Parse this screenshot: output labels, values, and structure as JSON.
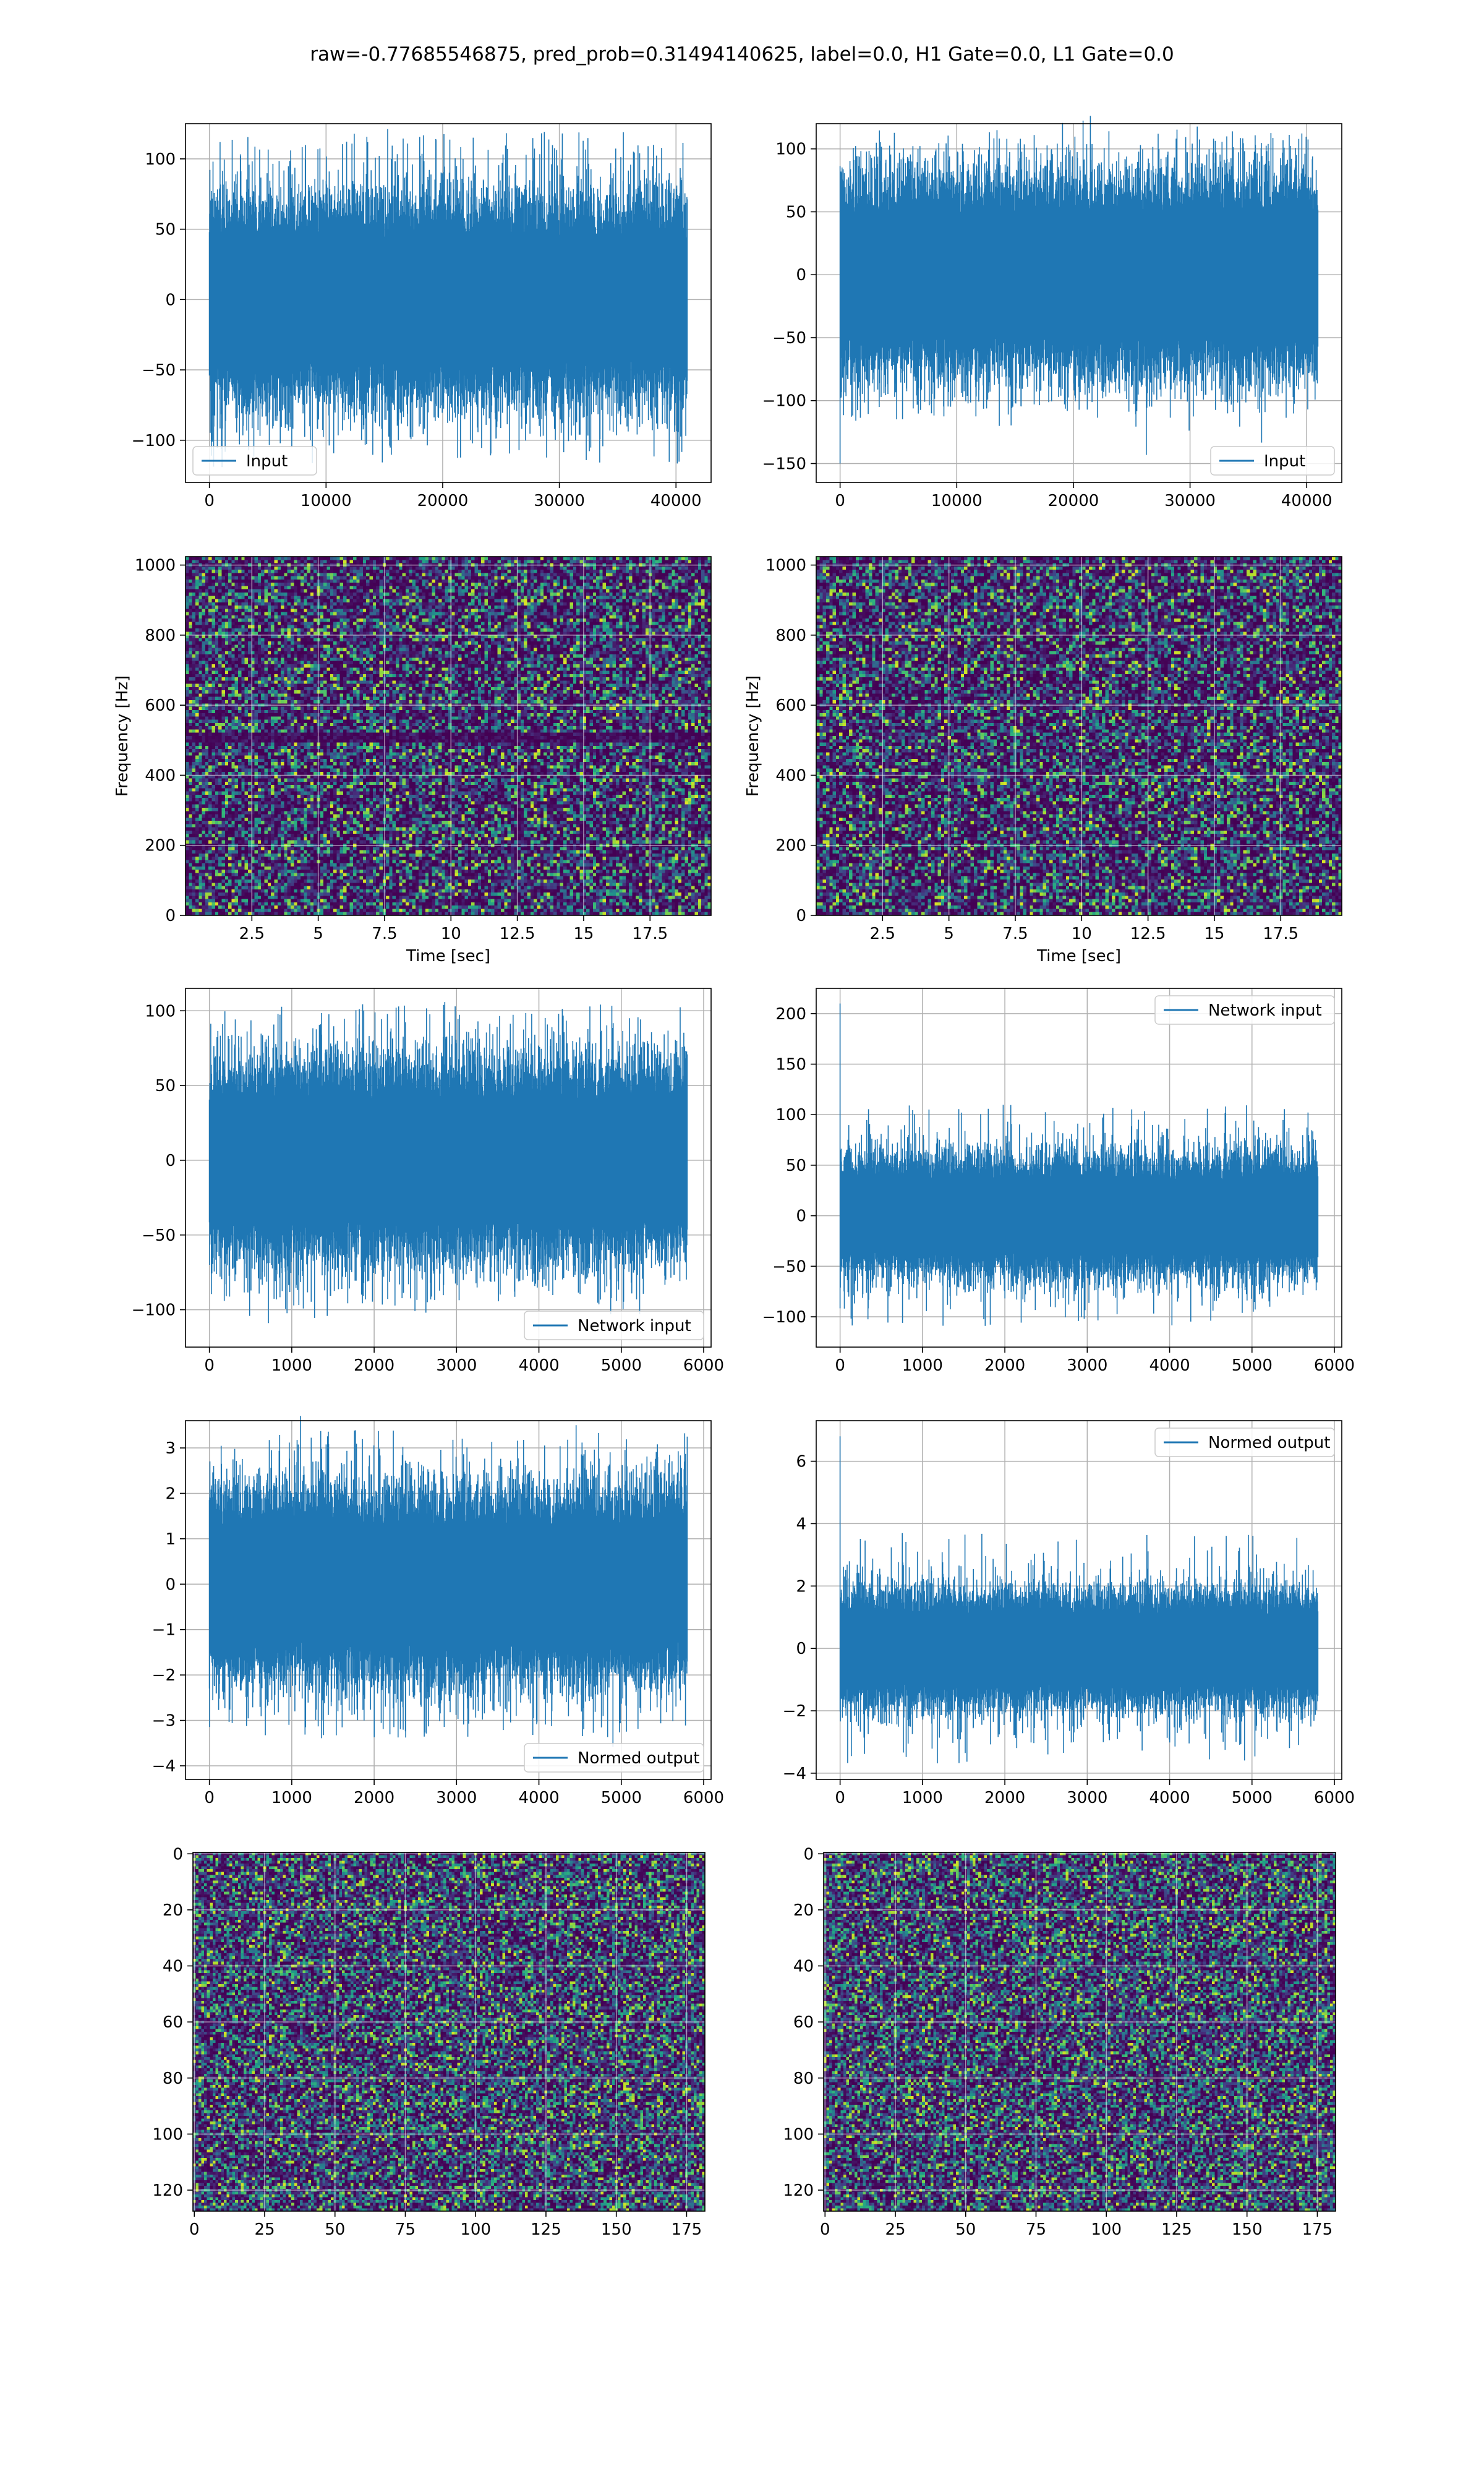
{
  "figure": {
    "title": "raw=-0.77685546875, pred_prob=0.31494140625, label=0.0, H1 Gate=0.0, L1 Gate=0.0"
  },
  "colors": {
    "line": "#1f77b4",
    "grid": "#b0b0b0",
    "viridis_low": "#440154",
    "viridis_mid": "#21918c",
    "viridis_high": "#fde725"
  },
  "chart_data": [
    {
      "id": "input-h1",
      "type": "line",
      "title": "",
      "xlabel": "",
      "ylabel": "",
      "series": [
        {
          "name": "Input",
          "amplitude_typical": 55,
          "amplitude_peak": 120
        }
      ],
      "x_range": [
        0,
        40960
      ],
      "xlim": [
        -2048,
        43008
      ],
      "ylim": [
        -130,
        125
      ],
      "xticks": [
        0,
        10000,
        20000,
        30000,
        40000
      ],
      "yticks": [
        -100,
        -50,
        0,
        50,
        100
      ],
      "legend": "lower-left",
      "grid": true
    },
    {
      "id": "input-l1",
      "type": "line",
      "title": "",
      "xlabel": "",
      "ylabel": "",
      "series": [
        {
          "name": "Input",
          "amplitude_typical": 60,
          "amplitude_peak": 115,
          "spike": {
            "x": 0,
            "y": -150
          }
        }
      ],
      "x_range": [
        0,
        40960
      ],
      "xlim": [
        -2048,
        43008
      ],
      "ylim": [
        -165,
        120
      ],
      "xticks": [
        0,
        10000,
        20000,
        30000,
        40000
      ],
      "yticks": [
        -150,
        -100,
        -50,
        0,
        50,
        100
      ],
      "legend": "lower-right",
      "grid": true
    },
    {
      "id": "spectrogram-h1",
      "type": "heatmap",
      "title": "",
      "xlabel": "Time [sec]",
      "ylabel": "Frequency [Hz]",
      "xlim": [
        0,
        19.8
      ],
      "ylim": [
        0,
        1024
      ],
      "xticks": [
        2.5,
        5.0,
        7.5,
        10.0,
        12.5,
        15.0,
        17.5
      ],
      "yticks": [
        0,
        200,
        400,
        600,
        800,
        1000
      ],
      "dark_band_hz": [
        505
      ],
      "grid": true
    },
    {
      "id": "spectrogram-l1",
      "type": "heatmap",
      "title": "",
      "xlabel": "Time [sec]",
      "ylabel": "Frequency [Hz]",
      "xlim": [
        0,
        19.8
      ],
      "ylim": [
        0,
        1024
      ],
      "xticks": [
        2.5,
        5.0,
        7.5,
        10.0,
        12.5,
        15.0,
        17.5
      ],
      "yticks": [
        0,
        200,
        400,
        600,
        800,
        1000
      ],
      "dark_band_hz": [],
      "grid": true
    },
    {
      "id": "network-input-h1",
      "type": "line",
      "title": "",
      "xlabel": "",
      "ylabel": "",
      "series": [
        {
          "name": "Network input",
          "amplitude_typical": 50,
          "amplitude_peak": 105
        }
      ],
      "x_range": [
        0,
        5800
      ],
      "xlim": [
        -290,
        6090
      ],
      "ylim": [
        -125,
        115
      ],
      "xticks": [
        0,
        1000,
        2000,
        3000,
        4000,
        5000,
        6000
      ],
      "yticks": [
        -100,
        -50,
        0,
        50,
        100
      ],
      "legend": "lower-right",
      "grid": true
    },
    {
      "id": "network-input-l1",
      "type": "line",
      "title": "",
      "xlabel": "",
      "ylabel": "",
      "series": [
        {
          "name": "Network input",
          "amplitude_typical": 45,
          "amplitude_peak": 110,
          "spike": {
            "x": 0,
            "y": 210
          }
        }
      ],
      "x_range": [
        0,
        5800
      ],
      "xlim": [
        -290,
        6090
      ],
      "ylim": [
        -130,
        225
      ],
      "xticks": [
        0,
        1000,
        2000,
        3000,
        4000,
        5000,
        6000
      ],
      "yticks": [
        -100,
        -50,
        0,
        50,
        100,
        150,
        200
      ],
      "legend": "upper-right",
      "grid": true
    },
    {
      "id": "normed-output-h1",
      "type": "line",
      "title": "",
      "xlabel": "",
      "ylabel": "",
      "series": [
        {
          "name": "Normed output",
          "amplitude_typical": 1.6,
          "amplitude_peak": 3.4
        }
      ],
      "x_range": [
        0,
        5800
      ],
      "xlim": [
        -290,
        6090
      ],
      "ylim": [
        -4.3,
        3.6
      ],
      "xticks": [
        0,
        1000,
        2000,
        3000,
        4000,
        5000,
        6000
      ],
      "yticks": [
        -4,
        -3,
        -2,
        -1,
        0,
        1,
        2,
        3
      ],
      "legend": "lower-right",
      "grid": true
    },
    {
      "id": "normed-output-l1",
      "type": "line",
      "title": "",
      "xlabel": "",
      "ylabel": "",
      "series": [
        {
          "name": "Normed output",
          "amplitude_typical": 1.4,
          "amplitude_peak": 3.7,
          "spike": {
            "x": 0,
            "y": 6.8
          }
        }
      ],
      "x_range": [
        0,
        5800
      ],
      "xlim": [
        -290,
        6090
      ],
      "ylim": [
        -4.2,
        7.3
      ],
      "xticks": [
        0,
        1000,
        2000,
        3000,
        4000,
        5000,
        6000
      ],
      "yticks": [
        -4,
        -2,
        0,
        2,
        4,
        6
      ],
      "legend": "upper-right",
      "grid": true
    },
    {
      "id": "image-h1",
      "type": "heatmap",
      "title": "",
      "xlabel": "",
      "ylabel": "",
      "xlim": [
        -0.5,
        181.5
      ],
      "ylim": [
        127.5,
        -0.5
      ],
      "y_inverted": true,
      "xticks": [
        0,
        25,
        50,
        75,
        100,
        125,
        150,
        175
      ],
      "yticks": [
        0,
        20,
        40,
        60,
        80,
        100,
        120
      ],
      "grid": true
    },
    {
      "id": "image-l1",
      "type": "heatmap",
      "title": "",
      "xlabel": "",
      "ylabel": "",
      "xlim": [
        -0.5,
        181.5
      ],
      "ylim": [
        127.5,
        -0.5
      ],
      "y_inverted": true,
      "xticks": [
        0,
        25,
        50,
        75,
        100,
        125,
        150,
        175
      ],
      "yticks": [
        0,
        20,
        40,
        60,
        80,
        100,
        120
      ],
      "grid": true
    }
  ]
}
